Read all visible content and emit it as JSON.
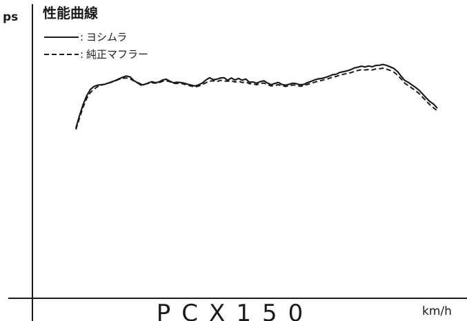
{
  "chart_data": {
    "type": "line",
    "title": "性能曲線",
    "subtitle": "PCX150",
    "ylabel": "ps",
    "xlabel": "km/h",
    "grid": false,
    "legend_position": "top-left",
    "x": [
      0,
      1,
      2,
      3,
      4,
      5,
      6,
      7,
      8,
      9,
      10,
      11,
      12,
      13,
      14,
      15,
      16,
      17,
      18,
      19,
      20,
      21,
      22,
      23,
      24,
      25,
      26,
      27,
      28,
      29,
      30,
      31,
      32,
      33,
      34,
      35,
      36,
      37,
      38,
      39,
      40,
      41,
      42,
      43,
      44,
      45,
      46,
      47,
      48,
      49,
      50,
      51,
      52,
      53,
      54,
      55,
      56,
      57,
      58,
      59,
      60,
      61,
      62,
      63,
      64,
      65,
      66,
      67,
      68,
      69,
      70,
      71,
      72,
      73,
      74,
      75,
      76,
      77,
      78,
      79,
      80,
      81,
      82,
      83,
      84,
      85,
      86,
      87,
      88,
      89,
      90,
      91,
      92,
      93,
      94,
      95,
      96,
      97,
      98,
      99,
      100
    ],
    "series": [
      {
        "name": "ヨシムラ",
        "style": "solid",
        "color": "#1a1a1a",
        "values": [
          68.0,
          73.0,
          77.5,
          81.0,
          83.5,
          84.7,
          85.2,
          85.4,
          85.6,
          86.1,
          86.6,
          87.1,
          87.8,
          88.4,
          88.9,
          88.5,
          87.1,
          86.2,
          85.3,
          85.5,
          86.1,
          86.6,
          86.2,
          86.5,
          87.3,
          87.6,
          86.8,
          86.2,
          86.4,
          86.3,
          86.0,
          85.6,
          85.2,
          84.9,
          85.4,
          86.1,
          87.3,
          88.2,
          87.4,
          87.6,
          88.1,
          88.2,
          87.2,
          88.1,
          87.3,
          87.9,
          87.2,
          87.7,
          86.4,
          86.5,
          86.0,
          86.6,
          87.0,
          86.1,
          85.4,
          85.9,
          86.3,
          85.5,
          85.2,
          85.6,
          86.0,
          85.8,
          85.4,
          85.5,
          86.2,
          86.7,
          87.3,
          87.7,
          87.9,
          88.3,
          88.8,
          89.4,
          89.6,
          90.3,
          90.6,
          90.9,
          91.4,
          92.1,
          92.4,
          92.8,
          92.5,
          92.9,
          92.6,
          93.1,
          93.2,
          93.5,
          93.1,
          92.5,
          91.9,
          90.6,
          88.8,
          87.1,
          86.3,
          85.3,
          84.3,
          83.1,
          81.6,
          80.0,
          78.6,
          77.6,
          76.0
        ]
      },
      {
        "name": "純正マフラー",
        "style": "dashed",
        "color": "#1a1a1a",
        "values": [
          67.5,
          72.0,
          76.5,
          79.9,
          82.3,
          83.6,
          84.6,
          85.2,
          85.6,
          86.0,
          86.5,
          87.0,
          87.6,
          88.0,
          88.1,
          87.7,
          87.0,
          86.3,
          85.7,
          85.6,
          85.9,
          86.2,
          86.0,
          86.2,
          86.8,
          87.0,
          86.6,
          86.0,
          85.9,
          86.0,
          85.6,
          85.2,
          84.8,
          84.5,
          84.9,
          85.5,
          86.2,
          86.8,
          87.0,
          86.6,
          87.2,
          86.9,
          86.8,
          87.0,
          86.5,
          86.8,
          86.3,
          86.5,
          85.8,
          85.7,
          85.4,
          85.9,
          86.1,
          85.4,
          84.9,
          85.1,
          85.4,
          85.0,
          84.7,
          85.0,
          85.3,
          85.2,
          84.8,
          84.9,
          85.5,
          85.9,
          86.4,
          86.8,
          87.1,
          87.5,
          87.9,
          88.4,
          88.7,
          89.2,
          89.6,
          89.9,
          90.2,
          90.7,
          91.1,
          91.4,
          91.3,
          91.5,
          91.3,
          91.7,
          91.8,
          92.0,
          91.6,
          91.1,
          90.4,
          89.2,
          87.7,
          86.0,
          85.0,
          84.0,
          83.0,
          81.8,
          80.3,
          78.8,
          77.3,
          76.1,
          75.0
        ]
      }
    ]
  }
}
